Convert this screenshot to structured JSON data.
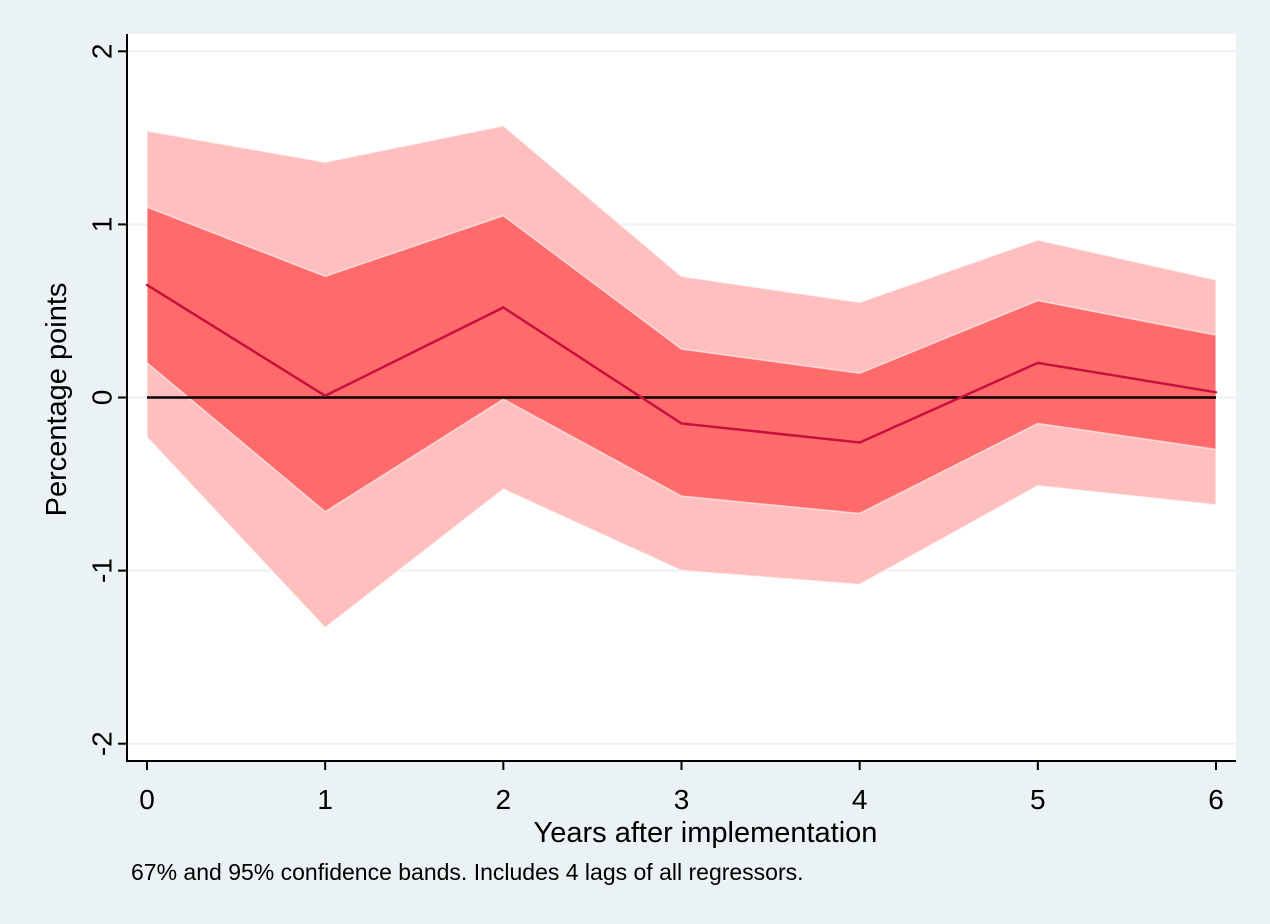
{
  "chart_data": {
    "type": "area",
    "title": "",
    "xlabel": "Years after implementation",
    "ylabel": "Percentage points",
    "note": "67% and 95% confidence bands. Includes 4 lags of all regressors.",
    "x": [
      0,
      1,
      2,
      3,
      4,
      5,
      6
    ],
    "xlim": [
      0,
      6
    ],
    "ylim": [
      -2.1,
      2.1
    ],
    "x_ticks": [
      0,
      1,
      2,
      3,
      4,
      5,
      6
    ],
    "y_ticks": [
      -2,
      -1,
      0,
      1,
      2
    ],
    "grid": true,
    "reference_line": 0,
    "series": [
      {
        "values": [
          0.65,
          0.01,
          0.52,
          -0.15,
          -0.26,
          0.2,
          0.03
        ],
        "color": "#c8103e"
      }
    ],
    "bands": [
      {
        "level": "95%",
        "upper": [
          1.54,
          1.36,
          1.57,
          0.7,
          0.55,
          0.91,
          0.68
        ],
        "lower": [
          -0.23,
          -1.33,
          -0.53,
          -1.0,
          -1.08,
          -0.51,
          -0.62
        ],
        "color": "#ffbfbf"
      },
      {
        "level": "67%",
        "upper": [
          1.1,
          0.7,
          1.05,
          0.28,
          0.14,
          0.56,
          0.36
        ],
        "lower": [
          0.2,
          -0.66,
          -0.01,
          -0.57,
          -0.67,
          -0.15,
          -0.3
        ],
        "color": "#ff6b6b"
      }
    ],
    "colors": {
      "background": "#eaf2f3",
      "plot_area": "#ffffff",
      "gridline": "#eaf2f3",
      "zero_line": "#000000"
    }
  }
}
